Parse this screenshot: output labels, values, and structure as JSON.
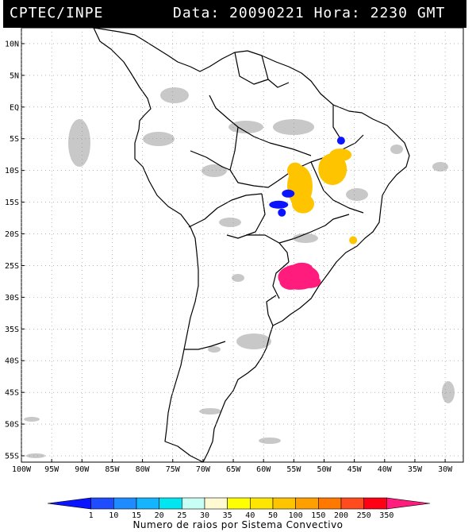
{
  "header": {
    "agency": "CPTEC/INPE",
    "data_label": "Data:",
    "date": "20090221",
    "hora_label": "Hora:",
    "time": "2230",
    "tz": "GMT"
  },
  "map": {
    "lat_labels": [
      "10N",
      "5N",
      "EQ",
      "5S",
      "10S",
      "15S",
      "20S",
      "25S",
      "30S",
      "35S",
      "40S",
      "45S",
      "50S",
      "55S"
    ],
    "lat_values": [
      10,
      5,
      0,
      -5,
      -10,
      -15,
      -20,
      -25,
      -30,
      -35,
      -40,
      -45,
      -50,
      -55
    ],
    "lon_labels": [
      "100W",
      "95W",
      "90W",
      "85W",
      "80W",
      "75W",
      "70W",
      "65W",
      "60W",
      "55W",
      "50W",
      "45W",
      "40W",
      "35W",
      "30W"
    ],
    "lon_values": [
      -100,
      -95,
      -90,
      -85,
      -80,
      -75,
      -70,
      -65,
      -60,
      -55,
      -50,
      -45,
      -40,
      -35,
      -30
    ],
    "extent": {
      "lon_min": -100,
      "lon_max": -27,
      "lat_min": -56,
      "lat_max": 12.5
    },
    "colors": {
      "land_outline": "#000000",
      "cloud": "#c8c8c8",
      "grid": "#8a8a8a"
    }
  },
  "storms": [
    {
      "name": "south-brazil-cluster",
      "level": "350",
      "color": "#ff1c7c",
      "lon": -54.2,
      "lat": -26.8
    },
    {
      "name": "central-brazil-cluster",
      "level": "50",
      "color": "#ffc400",
      "lon": -54.0,
      "lat": -12.5
    },
    {
      "name": "northeast-brazil-cluster",
      "level": "50",
      "color": "#ffc400",
      "lon": -48.6,
      "lat": -9.8
    },
    {
      "name": "southeast-small-cluster",
      "level": "50",
      "color": "#ffc400",
      "lon": -45.2,
      "lat": -21.0
    },
    {
      "name": "mato-grosso-blue-cluster",
      "level": "1",
      "color": "#0a14ff",
      "lon": -57.5,
      "lat": -15.4
    },
    {
      "name": "north-blue-cluster",
      "level": "1",
      "color": "#0a14ff",
      "lon": -47.2,
      "lat": -5.3
    }
  ],
  "legend": {
    "values": [
      "1",
      "10",
      "15",
      "20",
      "25",
      "30",
      "35",
      "40",
      "50",
      "100",
      "150",
      "200",
      "250",
      "350"
    ],
    "colors": [
      "#0a14ff",
      "#1e4cff",
      "#1e8cff",
      "#14b4ff",
      "#00e6f0",
      "#c8fff4",
      "#fffad2",
      "#ffff00",
      "#ffe600",
      "#ffc400",
      "#ffa000",
      "#ff7800",
      "#ff4b1e",
      "#ff0014",
      "#ff1c7c"
    ],
    "caption": "Numero de raios por Sistema Convectivo"
  }
}
